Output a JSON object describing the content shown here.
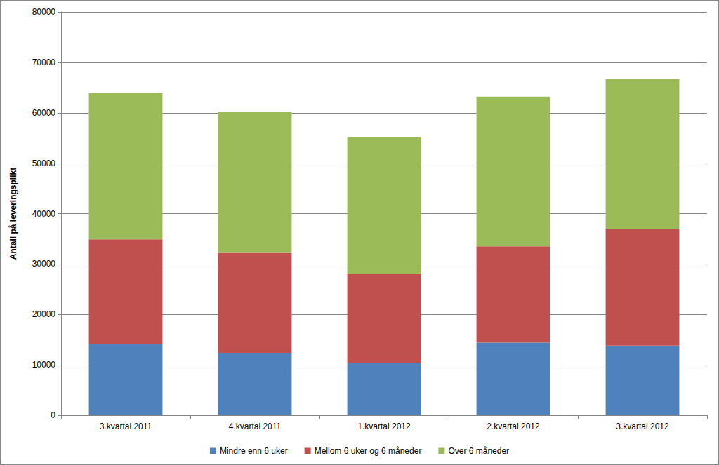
{
  "chart_data": {
    "type": "bar",
    "stacked": true,
    "grid": true,
    "legend": "bottom",
    "y_label": "Antall på leveringsplikt",
    "categories": [
      "3.kvartal 2011",
      "4.kvartal 2011",
      "1.kvartal 2012",
      "2.kvartal 2012",
      "3.kvartal 2012"
    ],
    "series": [
      {
        "name": "Mindre enn 6 uker",
        "color": "#4f81bd",
        "values": [
          14200,
          12300,
          10400,
          14400,
          13800
        ]
      },
      {
        "name": "Mellom 6 uker og 6 måneder",
        "color": "#c0504d",
        "values": [
          20700,
          19900,
          17600,
          19100,
          23200
        ]
      },
      {
        "name": "Over 6 måneder",
        "color": "#9bbb59",
        "values": [
          29000,
          28000,
          27100,
          29700,
          29700
        ]
      }
    ],
    "ylim": [
      0,
      80000
    ],
    "yticks": [
      0,
      10000,
      20000,
      30000,
      40000,
      50000,
      60000,
      70000,
      80000
    ]
  }
}
